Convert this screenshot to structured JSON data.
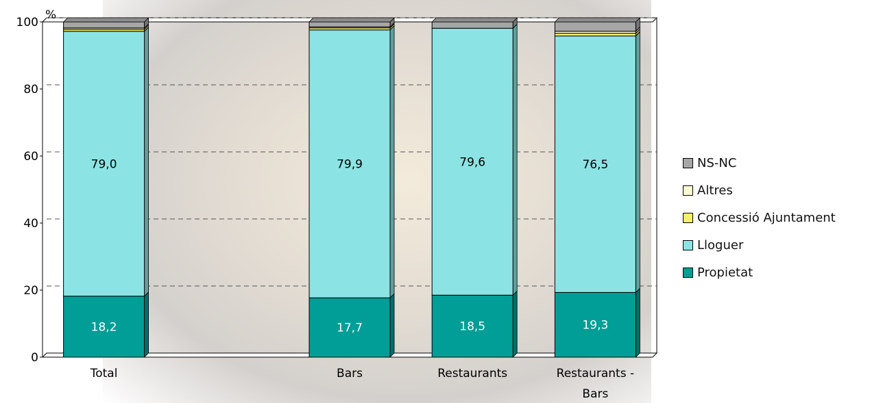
{
  "colors": {
    "ns_nc": "#a6a6a6",
    "altres": "#fffbd0",
    "concessio": "#f5f06a",
    "lloguer": "#8ce3e3",
    "propietat": "#009e96",
    "gridline": "#555555"
  },
  "chart_data": {
    "type": "bar",
    "stacked": true,
    "ylabel": "%",
    "ylim": [
      0,
      100
    ],
    "yticks": [
      0,
      20,
      40,
      60,
      80,
      100
    ],
    "grid": "dashed horizontal",
    "legend_position": "right",
    "categories": [
      "Total",
      "",
      "Bars",
      "Restaurants",
      "Restaurants -\nBars"
    ],
    "category_lines": [
      [
        "Total"
      ],
      [],
      [
        "Bars"
      ],
      [
        "Restaurants"
      ],
      [
        "Restaurants -",
        "Bars"
      ]
    ],
    "series": [
      {
        "name": "Propietat",
        "color_key": "propietat",
        "values": [
          18.2,
          null,
          17.7,
          18.5,
          19.3
        ],
        "labels": [
          "18,2",
          "",
          "17,7",
          "18,5",
          "19,3"
        ]
      },
      {
        "name": "Lloguer",
        "color_key": "lloguer",
        "values": [
          79.0,
          null,
          79.9,
          79.6,
          76.5
        ],
        "labels": [
          "79,0",
          "",
          "79,9",
          "79,6",
          "76,5"
        ]
      },
      {
        "name": "Concessió Ajuntament",
        "color_key": "concessio",
        "values": [
          0.6,
          null,
          0.6,
          0.0,
          0.8
        ],
        "labels": []
      },
      {
        "name": "Altres",
        "color_key": "altres",
        "values": [
          0.4,
          null,
          0.3,
          0.0,
          0.6
        ],
        "labels": []
      },
      {
        "name": "NS-NC",
        "color_key": "ns_nc",
        "values": [
          1.8,
          null,
          1.5,
          1.9,
          2.8
        ],
        "labels": []
      }
    ]
  },
  "legend": {
    "items": [
      {
        "label": "NS-NC",
        "color_key": "ns_nc"
      },
      {
        "label": "Altres",
        "color_key": "altres"
      },
      {
        "label": "Concessió Ajuntament",
        "color_key": "concessio"
      },
      {
        "label": "Lloguer",
        "color_key": "lloguer"
      },
      {
        "label": "Propietat",
        "color_key": "propietat"
      }
    ]
  }
}
